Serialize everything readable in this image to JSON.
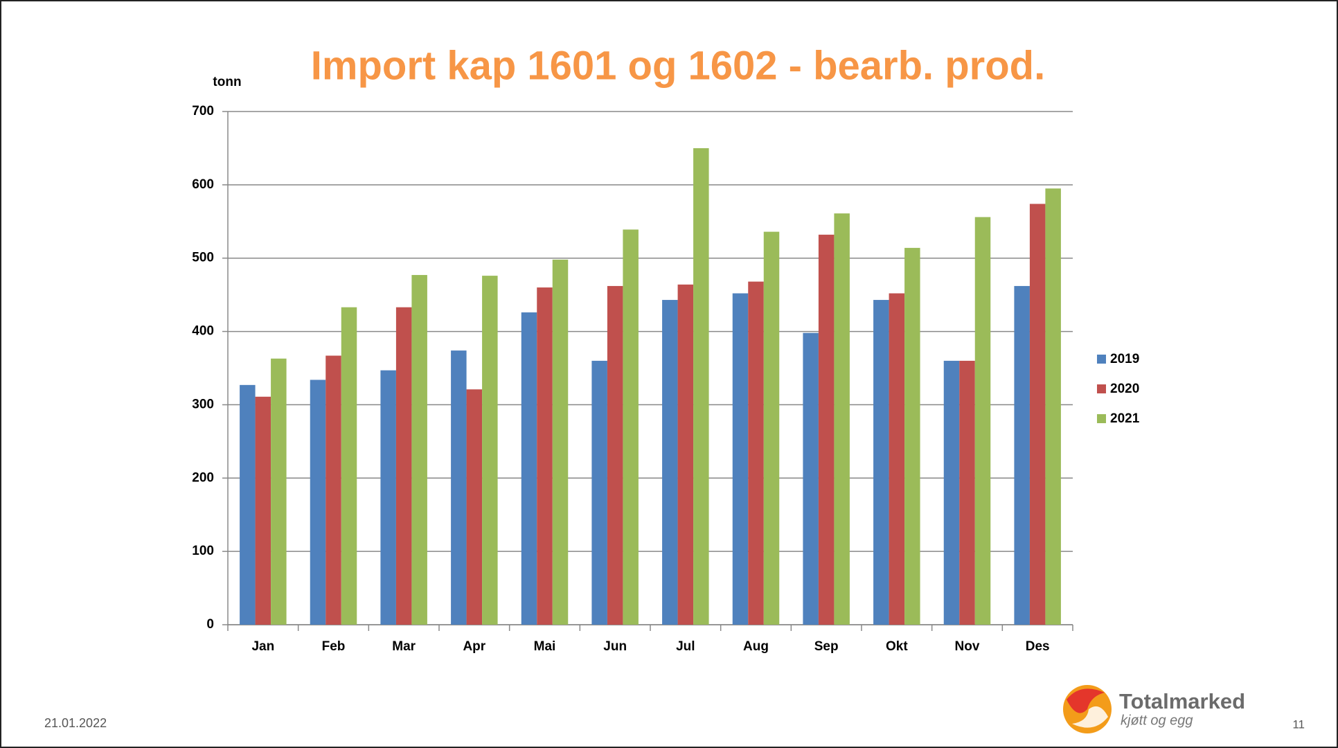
{
  "chart_data": {
    "type": "bar",
    "title": "Import kap 1601 og 1602 - bearb.  prod.",
    "y_label": "tonn",
    "categories": [
      "Jan",
      "Feb",
      "Mar",
      "Apr",
      "Mai",
      "Jun",
      "Jul",
      "Aug",
      "Sep",
      "Okt",
      "Nov",
      "Des"
    ],
    "series": [
      {
        "name": "2019",
        "color": "#4f81bd",
        "values": [
          327,
          334,
          347,
          374,
          426,
          360,
          443,
          452,
          398,
          443,
          360,
          462
        ]
      },
      {
        "name": "2020",
        "color": "#c0504d",
        "values": [
          311,
          367,
          433,
          321,
          460,
          462,
          464,
          468,
          532,
          452,
          360,
          574
        ]
      },
      {
        "name": "2021",
        "color": "#9bbb59",
        "values": [
          363,
          433,
          477,
          476,
          498,
          539,
          650,
          536,
          561,
          514,
          556,
          595
        ]
      }
    ],
    "ylim": [
      0,
      700
    ],
    "yticks": [
      0,
      100,
      200,
      300,
      400,
      500,
      600,
      700
    ],
    "grid": true,
    "legend": "right"
  },
  "footer": {
    "date": "21.01.2022",
    "page": "11"
  },
  "logo": {
    "name": "Totalmarked",
    "tagline": "kjøtt og egg"
  }
}
